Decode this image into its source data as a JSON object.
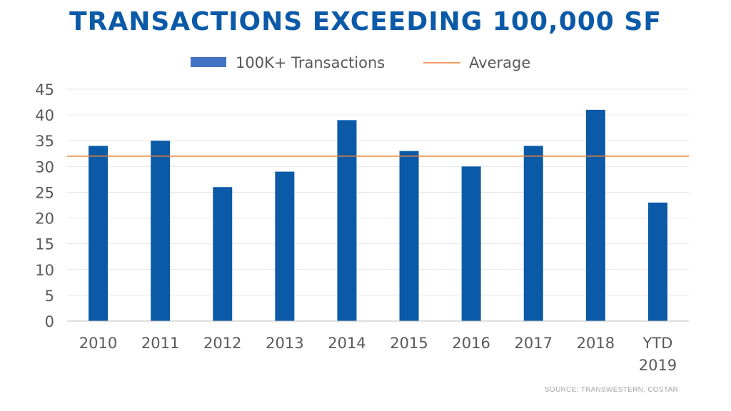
{
  "title": "TRANSACTIONS EXCEEDING 100,000 SF",
  "source": "SOURCE: TRANSWESTERN, COSTAR",
  "colors": {
    "bar": "#0b5aa8",
    "legend_bar": "#4472c4",
    "average_line": "#ed7d31",
    "title": "#0b5aa8",
    "text": "#595959",
    "grid": "#e6e6e6"
  },
  "chart_data": {
    "type": "bar",
    "title": "TRANSACTIONS EXCEEDING 100,000 SF",
    "xlabel": "",
    "ylabel": "",
    "categories": [
      "2010",
      "2011",
      "2012",
      "2013",
      "2014",
      "2015",
      "2016",
      "2017",
      "2018",
      "YTD 2019"
    ],
    "series": [
      {
        "name": "100K+ Transactions",
        "values": [
          34,
          35,
          26,
          29,
          39,
          33,
          30,
          34,
          41,
          23
        ]
      }
    ],
    "reference_lines": [
      {
        "name": "Average",
        "value": 32
      }
    ],
    "ylim": [
      0,
      45
    ],
    "yticks": [
      0,
      5,
      10,
      15,
      20,
      25,
      30,
      35,
      40,
      45
    ],
    "grid": true,
    "legend": "top-center"
  }
}
